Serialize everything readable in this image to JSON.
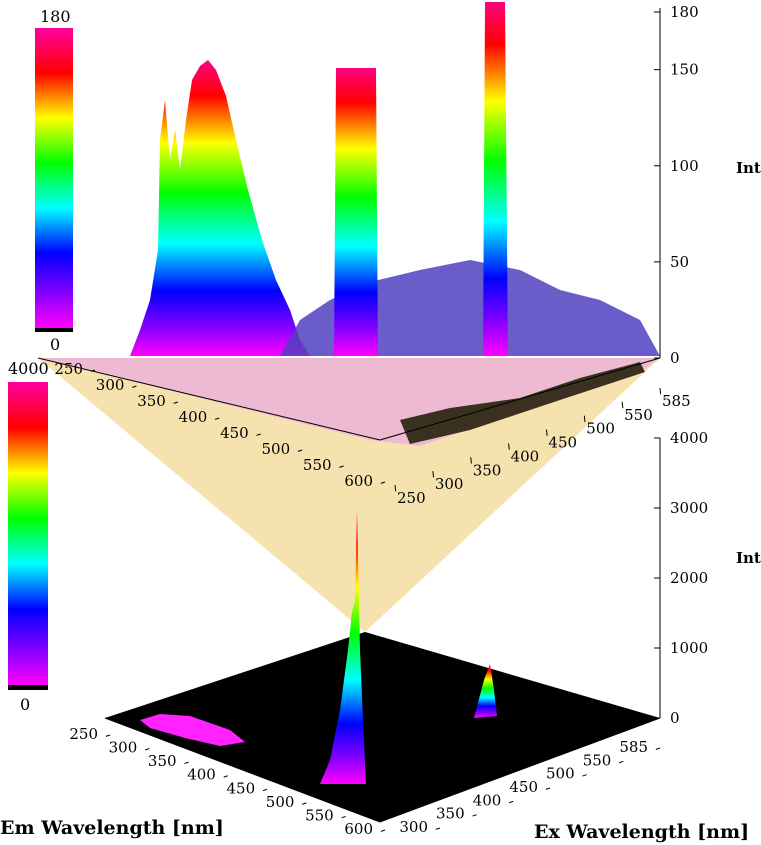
{
  "chart_data": [
    {
      "type": "surface3d",
      "name": "upper-panel",
      "zlabel": "Int",
      "zlim": [
        0,
        180
      ],
      "zticks": [
        "0",
        "50",
        "100",
        "150",
        "180"
      ],
      "colorbar": {
        "min_label": "0",
        "max_label": "180"
      },
      "em_ticks": [
        "250",
        "300",
        "350",
        "400",
        "450",
        "500",
        "550",
        "600"
      ],
      "ex_ticks": [
        "250",
        "300",
        "350",
        "400",
        "450",
        "500",
        "550",
        "585"
      ],
      "peaks": [
        {
          "em": 300,
          "ex": 260,
          "z": 168
        },
        {
          "em": 280,
          "ex": 255,
          "z": 125
        },
        {
          "em": 530,
          "ex": 265,
          "z": 163
        },
        {
          "em": 580,
          "ex": 330,
          "z": 180
        },
        {
          "em": 600,
          "ex": 585,
          "z": 30
        }
      ]
    },
    {
      "type": "surface3d",
      "name": "lower-panel",
      "zlabel": "Int",
      "zlim": [
        0,
        4000
      ],
      "zticks": [
        "0",
        "1000",
        "2000",
        "3000",
        "4000"
      ],
      "colorbar": {
        "min_label": "0",
        "max_label": "4000"
      },
      "em_ticks": [
        "250",
        "300",
        "350",
        "400",
        "450",
        "500",
        "550",
        "600"
      ],
      "ex_ticks": [
        "300",
        "350",
        "400",
        "450",
        "500",
        "550",
        "585"
      ],
      "xlabel": "Em Wavelength [nm]",
      "ylabel": "Ex Wavelength [nm]",
      "peaks": [
        {
          "em": 570,
          "ex": 300,
          "z": 3900
        },
        {
          "em": 560,
          "ex": 320,
          "z": 1200
        },
        {
          "em": 400,
          "ex": 560,
          "z": 600
        }
      ]
    }
  ],
  "colors": {
    "floor_upper": "#2a2418",
    "floor_lower": "#000000",
    "projection": "#f5dda0"
  }
}
